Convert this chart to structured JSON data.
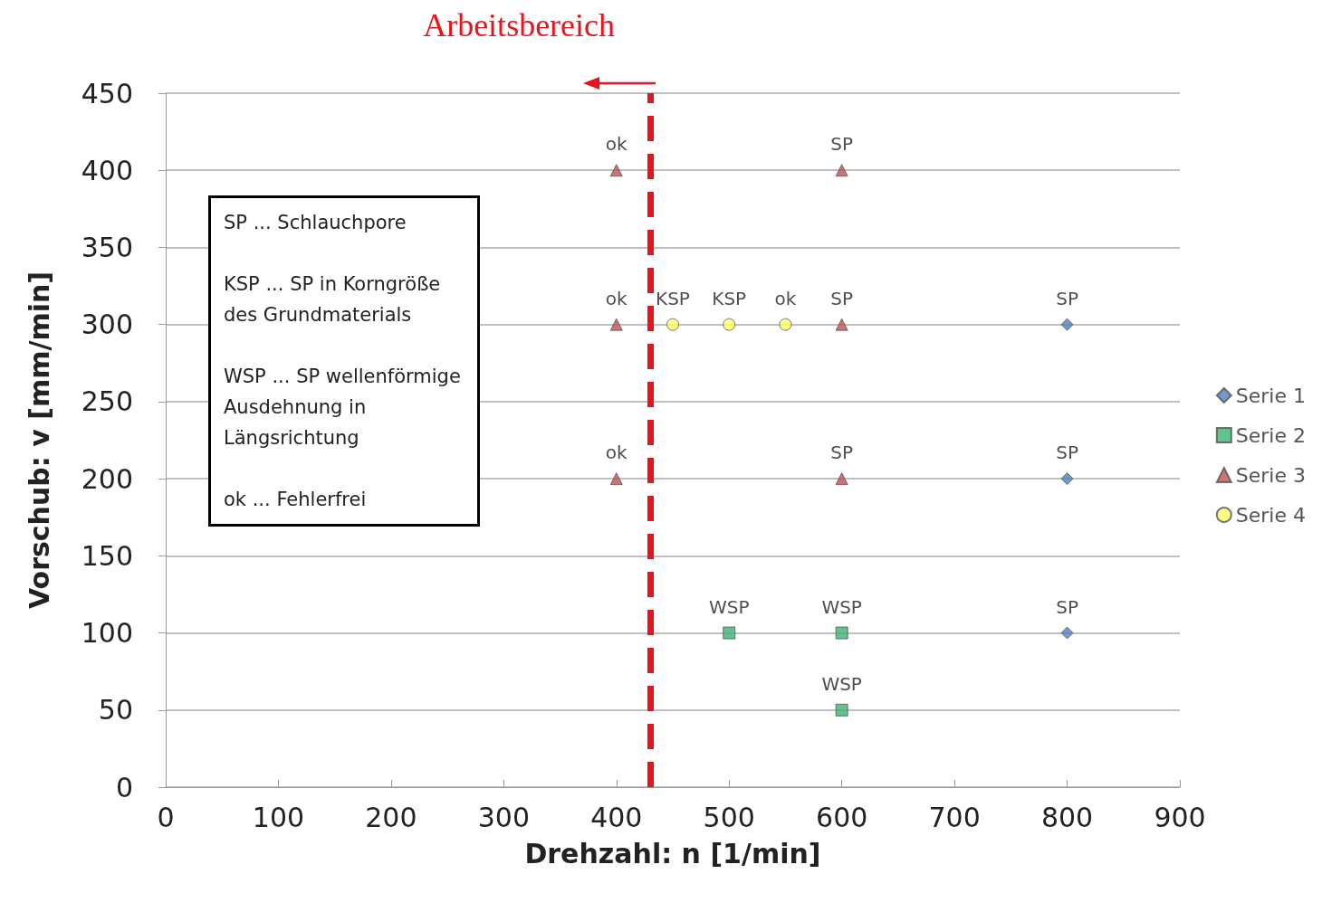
{
  "chart_data": {
    "type": "scatter",
    "xlabel": "Drehzahl: n [1/min]",
    "ylabel": "Vorschub: v [mm/min]",
    "xlim": [
      0,
      900
    ],
    "xticks": [
      0,
      100,
      200,
      300,
      400,
      500,
      600,
      700,
      800,
      900
    ],
    "ylim": [
      0,
      450
    ],
    "yticks": [
      0,
      50,
      100,
      150,
      200,
      250,
      300,
      350,
      400,
      450
    ],
    "grid": "y",
    "legend": "right",
    "series": [
      {
        "name": "Serie 1",
        "color": "#4f81bd",
        "marker": "diamond",
        "x": [
          800,
          800,
          800
        ],
        "values": [
          300,
          200,
          100
        ],
        "value_labels": [
          "SP",
          "SP",
          "SP"
        ]
      },
      {
        "name": "Serie 2",
        "color": "#3cb371",
        "marker": "square",
        "x": [
          500,
          600,
          600
        ],
        "values": [
          100,
          100,
          50
        ],
        "value_labels": [
          "WSP",
          "WSP",
          "WSP"
        ]
      },
      {
        "name": "Serie 3",
        "color": "#c0504d",
        "marker": "triangle",
        "x": [
          400,
          600,
          400,
          600,
          400,
          600
        ],
        "values": [
          400,
          400,
          300,
          300,
          200,
          200
        ],
        "value_labels": [
          "ok",
          "SP",
          "ok",
          "SP",
          "ok",
          "SP"
        ]
      },
      {
        "name": "Serie 4",
        "color": "#ffff66",
        "marker": "circle",
        "x": [
          450,
          500,
          550
        ],
        "values": [
          300,
          300,
          300
        ],
        "value_labels": [
          "KSP",
          "KSP",
          "ok"
        ]
      }
    ],
    "ref_lines": [
      {
        "axis": "x",
        "value": 430,
        "label": "Arbeitsbereich",
        "color": "#e8141b",
        "line_style": "dashed"
      }
    ],
    "annotations": [
      "SP ... Schlauchpore",
      "KSP ... SP in Korngröße des Grundmaterials",
      "WSP ... SP wellenförmige Ausdehnung in Längsrichtung",
      "ok ... Fehlerfrei"
    ]
  }
}
